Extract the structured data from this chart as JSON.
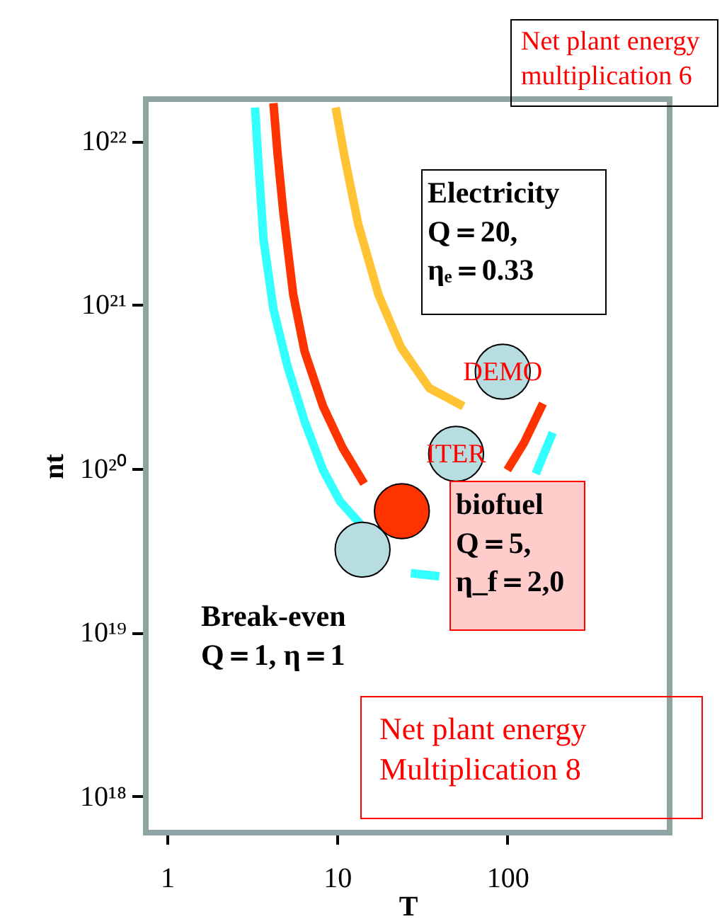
{
  "chart_data": {
    "type": "line",
    "xlabel": "T",
    "ylabel": "nt",
    "log": "xy",
    "grid": false,
    "legend": false,
    "line_style": "solid",
    "xlim": [
      0.75,
      900
    ],
    "ylim": [
      6e+17,
      1.8e+22
    ],
    "xticks": [
      1,
      10,
      100
    ],
    "yticks": [
      {
        "value": 1e+18,
        "label": "10¹⁸"
      },
      {
        "value": 1e+19,
        "label": "10¹⁹"
      },
      {
        "value": 1e+20,
        "label": "10²⁰"
      },
      {
        "value": 1e+21,
        "label": "10²¹"
      },
      {
        "value": 1e+22,
        "label": "10²²"
      }
    ],
    "series": [
      {
        "color": "#33ffff",
        "x": [
          3.29,
          3.42,
          3.69,
          4.22,
          5.11,
          6.43,
          8.26,
          10.4,
          13.9,
          18.5,
          27.1,
          39.8,
          58.4,
          85.8,
          147,
          185
        ],
        "values": [
          1.6e+22,
          8.2e+21,
          2.5e+21,
          9.4e+20,
          4.2e+20,
          1.95e+20,
          9.8e+19,
          6.3e+19,
          4.5e+19,
          null,
          2.3e+19,
          2.2e+19,
          null,
          null,
          9.3e+19,
          1.66e+20
        ]
      },
      {
        "color": "#ff3300",
        "x": [
          4.22,
          4.47,
          4.82,
          5.52,
          6.43,
          8.26,
          10.8,
          14.4,
          20.3,
          32.9,
          48.2,
          70.8,
          100,
          126,
          162
        ],
        "values": [
          1.7e+22,
          8.2e+21,
          3.7e+21,
          1.15e+21,
          5.2e+20,
          2.4e+20,
          1.33e+20,
          8.1e+19,
          null,
          null,
          null,
          null,
          9.8e+19,
          1.45e+20,
          2.5e+20
        ]
      },
      {
        "color": "#ffc333",
        "x": [
          9.8,
          11.0,
          13.3,
          17.5,
          23.7,
          34.8,
          55.2
        ],
        "values": [
          1.6e+22,
          8.2e+21,
          3.1e+21,
          1.15e+21,
          5.5e+20,
          3.1e+20,
          2.4e+20
        ]
      },
      {
        "type": "scatter",
        "marker": "circle",
        "x": [
          94,
          50,
          24,
          14.1
        ],
        "values": [
          3.9e+20,
          1.23e+20,
          5.5e+19,
          3.2e+19
        ],
        "colors": [
          "#b8dde0",
          "#b8dde0",
          "#ff3300",
          "#b8dde0"
        ]
      }
    ],
    "annotations": [
      "Net plant energy\nmultiplication 6",
      "Electricity\nQ＝20,\nηₑ＝0.33",
      {
        "text": "DEMO",
        "x": 94,
        "y": 3.9e+20
      },
      {
        "text": "ITER",
        "x": 50,
        "y": 1.23e+20
      },
      "biofuel\nQ＝5,\nη_f＝2,0",
      "Break-even\nQ＝1, η＝1",
      "Net plant energy\nMultiplication 8"
    ]
  }
}
